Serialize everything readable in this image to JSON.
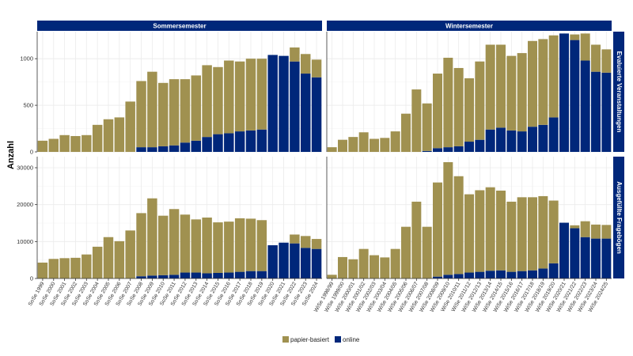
{
  "colors": {
    "paper": "#a09150",
    "online": "#00277a",
    "strip": "#00277a",
    "grid": "#ebebeb"
  },
  "y_axis_label": "Anzahl",
  "legend": {
    "position": "bottom",
    "items": [
      {
        "label": "papier-basiert",
        "color": "#a09150"
      },
      {
        "label": "online",
        "color": "#00277a"
      }
    ]
  },
  "chart_data": [
    {
      "type": "bar",
      "stacked": true,
      "facet_col": "Sommersemester",
      "facet_row": "Evaluierte Veranstaltungen",
      "ylim": [
        0,
        1290
      ],
      "yticks": [
        0,
        500,
        1000
      ],
      "grid": true,
      "categories": [
        "SoSe 1999",
        "SoSe 2000",
        "SoSe 2001",
        "SoSe 2002",
        "SoSe 2003",
        "SoSe 2004",
        "SoSe 2005",
        "SoSe 2006",
        "SoSe 2007",
        "SoSe 2008",
        "SoSe 2009",
        "SoSe 2010",
        "SoSe 2011",
        "SoSe 2012",
        "SoSe 2013",
        "SoSe 2014",
        "SoSe 2015",
        "SoSe 2016",
        "SoSe 2017",
        "SoSe 2018",
        "SoSe 2019",
        "SoSe 2020",
        "SoSe 2021",
        "SoSe 2022",
        "SoSe 2023",
        "SoSe 2024"
      ],
      "series": [
        {
          "name": "papier-basiert",
          "values": [
            120,
            140,
            180,
            170,
            180,
            290,
            350,
            370,
            540,
            710,
            810,
            680,
            710,
            680,
            700,
            770,
            720,
            780,
            750,
            770,
            760,
            0,
            0,
            150,
            210,
            190
          ]
        },
        {
          "name": "online",
          "values": [
            0,
            0,
            0,
            0,
            0,
            0,
            0,
            0,
            0,
            50,
            50,
            60,
            70,
            100,
            120,
            160,
            190,
            200,
            220,
            230,
            240,
            1040,
            1030,
            970,
            840,
            800
          ]
        }
      ]
    },
    {
      "type": "bar",
      "stacked": true,
      "facet_col": "Wintersemester",
      "facet_row": "Evaluierte Veranstaltungen",
      "ylim": [
        0,
        1290
      ],
      "yticks": [
        0,
        500,
        1000
      ],
      "grid": true,
      "categories": [
        "WiSe 1998/99",
        "WiSe 1999/00",
        "WiSe 2000/01",
        "WiSe 2001/02",
        "WiSe 2002/03",
        "WiSe 2003/04",
        "WiSe 2004/05",
        "WiSe 2005/06",
        "WiSe 2006/07",
        "WiSe 2007/08",
        "WiSe 2008/09",
        "WiSe 2009/10",
        "WiSe 2010/11",
        "WiSe 2011/12",
        "WiSe 2012/13",
        "WiSe 2013/14",
        "WiSe 2014/15",
        "WiSe 2015/16",
        "WiSe 2016/17",
        "WiSe 2017/18",
        "WiSe 2018/19",
        "WiSe 2019/20",
        "WiSe 2020/21",
        "WiSe 2021/22",
        "WiSe 2022/23",
        "WiSe 2023/24",
        "WiSe 2024/25"
      ],
      "series": [
        {
          "name": "papier-basiert",
          "values": [
            50,
            130,
            160,
            210,
            140,
            150,
            220,
            410,
            670,
            510,
            800,
            960,
            840,
            680,
            840,
            910,
            890,
            800,
            840,
            920,
            920,
            880,
            0,
            60,
            290,
            290,
            250
          ]
        },
        {
          "name": "online",
          "values": [
            0,
            0,
            0,
            0,
            0,
            0,
            0,
            0,
            0,
            10,
            40,
            50,
            60,
            110,
            130,
            240,
            260,
            230,
            220,
            270,
            290,
            370,
            1270,
            1200,
            980,
            860,
            850
          ]
        }
      ]
    },
    {
      "type": "bar",
      "stacked": true,
      "facet_col": "Sommersemester",
      "facet_row": "Ausgefüllte Fragebögen",
      "ylim": [
        0,
        33000
      ],
      "yticks": [
        0,
        10000,
        20000,
        30000
      ],
      "grid": true,
      "categories": [
        "SoSe 1999",
        "SoSe 2000",
        "SoSe 2001",
        "SoSe 2002",
        "SoSe 2003",
        "SoSe 2004",
        "SoSe 2005",
        "SoSe 2006",
        "SoSe 2007",
        "SoSe 2008",
        "SoSe 2009",
        "SoSe 2010",
        "SoSe 2011",
        "SoSe 2012",
        "SoSe 2013",
        "SoSe 2014",
        "SoSe 2015",
        "SoSe 2016",
        "SoSe 2017",
        "SoSe 2018",
        "SoSe 2019",
        "SoSe 2020",
        "SoSe 2021",
        "SoSe 2022",
        "SoSe 2023",
        "SoSe 2024"
      ],
      "series": [
        {
          "name": "papier-basiert",
          "values": [
            4300,
            5300,
            5500,
            5600,
            6500,
            8600,
            11200,
            10100,
            13000,
            17100,
            20900,
            16100,
            17800,
            15700,
            14400,
            15100,
            13700,
            13800,
            14500,
            14200,
            13800,
            0,
            0,
            2400,
            3200,
            2700
          ]
        },
        {
          "name": "online",
          "values": [
            0,
            0,
            0,
            0,
            0,
            0,
            0,
            0,
            0,
            600,
            800,
            900,
            1000,
            1600,
            1600,
            1400,
            1500,
            1600,
            1800,
            2000,
            2000,
            9000,
            9700,
            9500,
            8300,
            8000
          ]
        }
      ]
    },
    {
      "type": "bar",
      "stacked": true,
      "facet_col": "Wintersemester",
      "facet_row": "Ausgefüllte Fragebögen",
      "ylim": [
        0,
        33000
      ],
      "yticks": [
        0,
        10000,
        20000,
        30000
      ],
      "grid": true,
      "categories": [
        "WiSe 1998/99",
        "WiSe 1999/00",
        "WiSe 2000/01",
        "WiSe 2001/02",
        "WiSe 2002/03",
        "WiSe 2003/04",
        "WiSe 2004/05",
        "WiSe 2005/06",
        "WiSe 2006/07",
        "WiSe 2007/08",
        "WiSe 2008/09",
        "WiSe 2009/10",
        "WiSe 2010/11",
        "WiSe 2011/12",
        "WiSe 2012/13",
        "WiSe 2013/14",
        "WiSe 2014/15",
        "WiSe 2015/16",
        "WiSe 2016/17",
        "WiSe 2017/18",
        "WiSe 2018/19",
        "WiSe 2019/20",
        "WiSe 2020/21",
        "WiSe 2021/22",
        "WiSe 2022/23",
        "WiSe 2023/24",
        "WiSe 2024/25"
      ],
      "series": [
        {
          "name": "papier-basiert",
          "values": [
            1000,
            5800,
            5200,
            8000,
            6300,
            5700,
            8000,
            14000,
            20800,
            14000,
            25500,
            30500,
            26500,
            21200,
            22100,
            22600,
            21600,
            19000,
            20000,
            19800,
            19600,
            17000,
            0,
            800,
            4300,
            3800,
            3700
          ]
        },
        {
          "name": "online",
          "values": [
            0,
            0,
            0,
            0,
            0,
            0,
            0,
            0,
            0,
            0,
            500,
            1000,
            1200,
            1600,
            1800,
            2100,
            2200,
            1800,
            2000,
            2200,
            2700,
            4100,
            15100,
            13600,
            11200,
            10800,
            10800
          ]
        }
      ]
    }
  ]
}
